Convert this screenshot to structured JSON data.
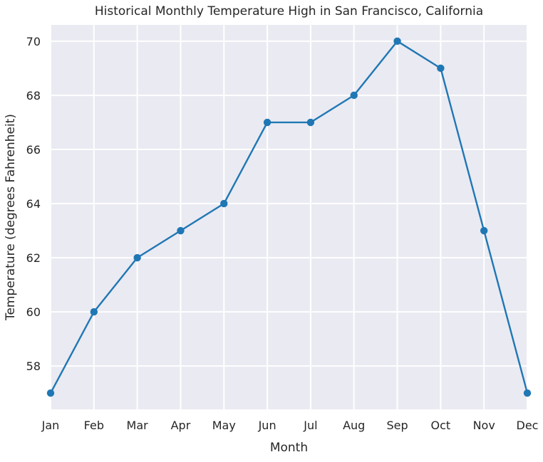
{
  "chart_data": {
    "type": "line",
    "title": "Historical Monthly Temperature High in San Francisco, California",
    "xlabel": "Month",
    "ylabel": "Temperature (degrees Fahrenheit)",
    "categories": [
      "Jan",
      "Feb",
      "Mar",
      "Apr",
      "May",
      "Jun",
      "Jul",
      "Aug",
      "Sep",
      "Oct",
      "Nov",
      "Dec"
    ],
    "series": [
      {
        "values": [
          57,
          60,
          62,
          63,
          64,
          67,
          67,
          68,
          70,
          69,
          63,
          57
        ],
        "color": "#1f77b4",
        "marker": "circle"
      }
    ],
    "yticks": [
      58,
      60,
      62,
      64,
      66,
      68,
      70
    ],
    "ylim": [
      56.4,
      70.6
    ],
    "grid": true,
    "background": "#eaeaf2",
    "grid_color": "#ffffff"
  }
}
